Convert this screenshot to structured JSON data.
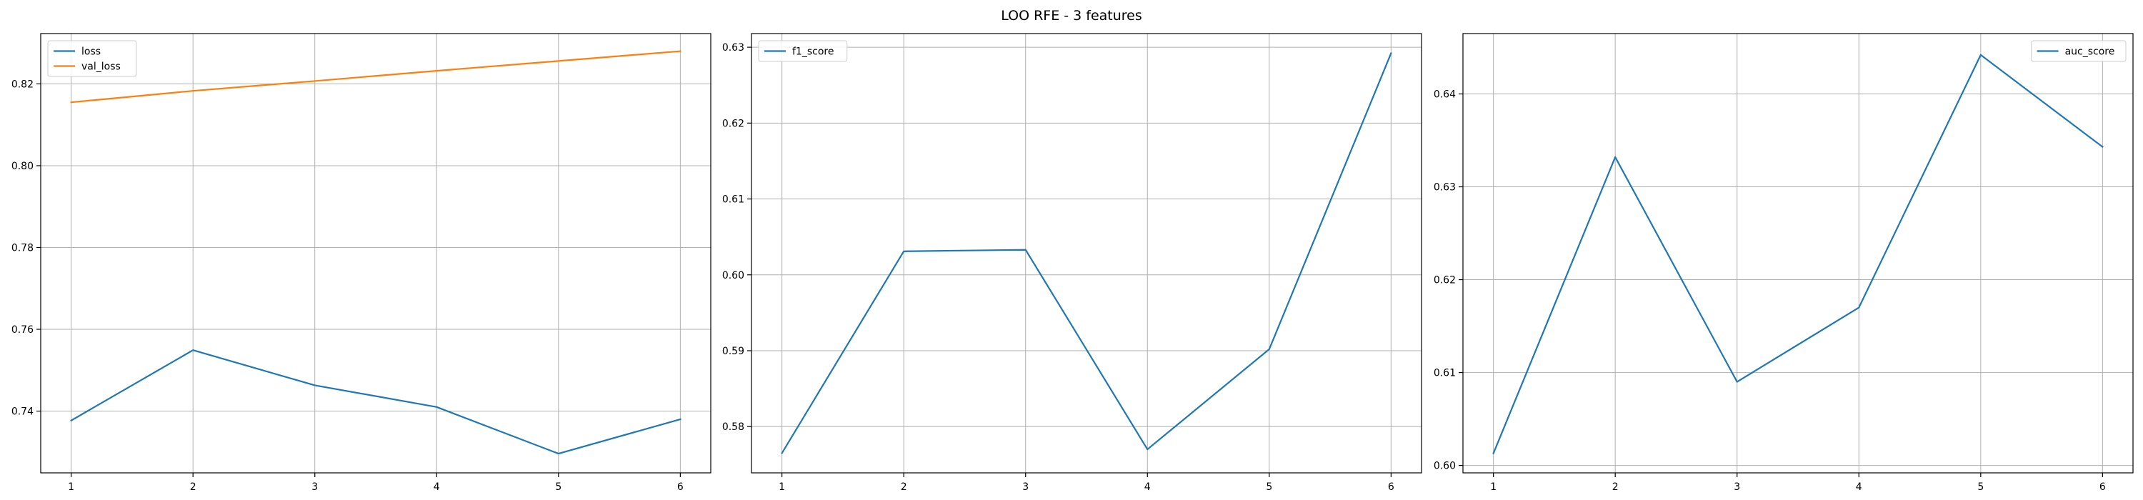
{
  "figure": {
    "title": "LOO RFE - 3 features"
  },
  "chart_data": [
    {
      "type": "line",
      "title": "",
      "xlabel": "",
      "ylabel": "",
      "x": [
        1,
        2,
        3,
        4,
        5,
        6
      ],
      "xticks": [
        "1",
        "2",
        "3",
        "4",
        "5",
        "6"
      ],
      "xlim": [
        0.75,
        6.25
      ],
      "ylim": [
        0.7249,
        0.8323
      ],
      "yticks": [
        "0.74",
        "0.76",
        "0.78",
        "0.80",
        "0.82"
      ],
      "grid": true,
      "legend": "upper left",
      "series": [
        {
          "name": "loss",
          "color": "#1f77b4",
          "values": [
            0.7377,
            0.7549,
            0.7463,
            0.741,
            0.7296,
            0.738
          ]
        },
        {
          "name": "val_loss",
          "color": "#ff7f0e",
          "values": [
            0.8155,
            0.8183,
            0.8207,
            0.8232,
            0.8256,
            0.828
          ]
        }
      ]
    },
    {
      "type": "line",
      "title": "",
      "xlabel": "",
      "ylabel": "",
      "x": [
        1,
        2,
        3,
        4,
        5,
        6
      ],
      "xticks": [
        "1",
        "2",
        "3",
        "4",
        "5",
        "6"
      ],
      "xlim": [
        0.75,
        6.25
      ],
      "ylim": [
        0.5739,
        0.6318
      ],
      "yticks": [
        "0.58",
        "0.59",
        "0.60",
        "0.61",
        "0.62",
        "0.63"
      ],
      "grid": true,
      "legend": "upper left",
      "series": [
        {
          "name": "f1_score",
          "color": "#1f77b4",
          "values": [
            0.5765,
            0.6031,
            0.6033,
            0.577,
            0.5902,
            0.6292
          ]
        }
      ]
    },
    {
      "type": "line",
      "title": "",
      "xlabel": "",
      "ylabel": "",
      "x": [
        1,
        2,
        3,
        4,
        5,
        6
      ],
      "xticks": [
        "1",
        "2",
        "3",
        "4",
        "5",
        "6"
      ],
      "xlim": [
        0.75,
        6.25
      ],
      "ylim": [
        0.5992,
        0.6465
      ],
      "yticks": [
        "0.60",
        "0.61",
        "0.62",
        "0.63",
        "0.64"
      ],
      "grid": true,
      "legend": "upper right",
      "series": [
        {
          "name": "auc_score",
          "color": "#1f77b4",
          "values": [
            0.6013,
            0.6332,
            0.609,
            0.617,
            0.6442,
            0.6343
          ]
        }
      ]
    }
  ]
}
